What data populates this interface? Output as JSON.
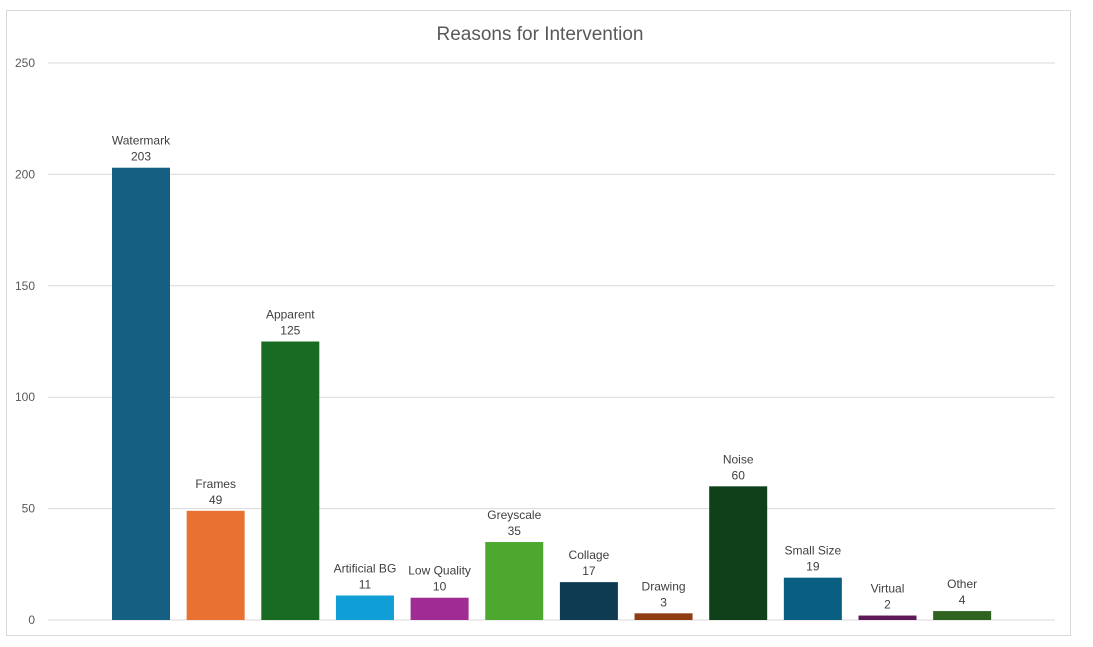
{
  "chart_data": {
    "type": "bar",
    "title": "Reasons for Intervention",
    "xlabel": "",
    "ylabel": "",
    "ylim": [
      0,
      250
    ],
    "yticks": [
      0,
      50,
      100,
      150,
      200,
      250
    ],
    "grid": true,
    "legend": "none",
    "categories": [
      "Watermark",
      "Frames",
      "Apparent",
      "Artificial BG",
      "Low Quality",
      "Greyscale",
      "Collage",
      "Drawing",
      "Noise",
      "Small Size",
      "Virtual",
      "Other"
    ],
    "values": [
      203,
      49,
      125,
      11,
      10,
      35,
      17,
      3,
      60,
      19,
      2,
      4
    ],
    "colors": [
      "#156082",
      "#E97132",
      "#196B24",
      "#0F9ED5",
      "#A02B93",
      "#4EA72E",
      "#0E3A52",
      "#8F3E13",
      "#0F4019",
      "#095F81",
      "#5E1A58",
      "#2F6420"
    ]
  }
}
